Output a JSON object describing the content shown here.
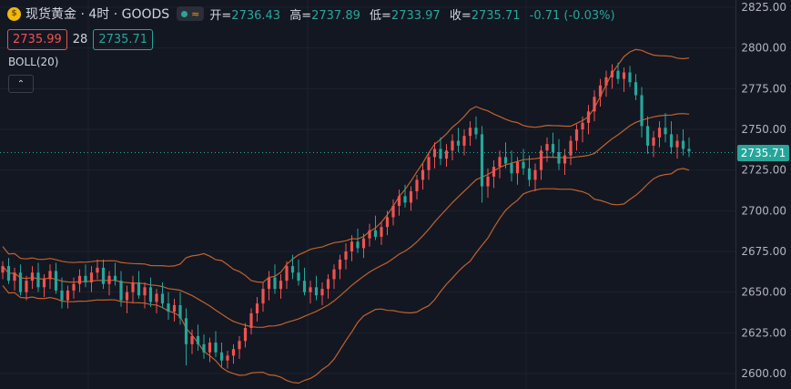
{
  "header": {
    "symbol_title": "现货黄金 · 4时 · GOODS",
    "logo_glyph": "$",
    "status_wave": "≈",
    "ohlc": [
      {
        "key": "开=",
        "value": "2736.43"
      },
      {
        "key": "高=",
        "value": "2737.89"
      },
      {
        "key": "低=",
        "value": "2733.97"
      },
      {
        "key": "收=",
        "value": "2735.71"
      }
    ],
    "change": "-0.71 (-0.03%)"
  },
  "trade": {
    "sell": "2735.99",
    "spread": "28",
    "buy": "2735.71"
  },
  "indicator": {
    "name": "BOLL(20)",
    "collapse_glyph": "⌃"
  },
  "price_axis": {
    "last_label": "2735.71"
  },
  "colors": {
    "up": "#ef5350",
    "down": "#26a69a",
    "band": "#c0622d",
    "background": "#131722",
    "grid": "#1e222d",
    "axis_text": "#b2b5be"
  },
  "chart_data": {
    "type": "candlestick",
    "y_axis": {
      "ticks": [
        2600,
        2625,
        2650,
        2675,
        2700,
        2725,
        2750,
        2775,
        2800,
        2825
      ],
      "ylim": [
        2596,
        2827
      ]
    },
    "last_price": 2735.71,
    "indicator": "BOLL(20)",
    "up_color_meaning": "close > open",
    "candles": [
      [
        2662,
        2669,
        2658,
        2666
      ],
      [
        2666,
        2671,
        2655,
        2657
      ],
      [
        2657,
        2665,
        2651,
        2662
      ],
      [
        2662,
        2667,
        2648,
        2650
      ],
      [
        2650,
        2660,
        2645,
        2657
      ],
      [
        2657,
        2666,
        2652,
        2662
      ],
      [
        2662,
        2668,
        2650,
        2653
      ],
      [
        2653,
        2661,
        2647,
        2658
      ],
      [
        2658,
        2667,
        2652,
        2663
      ],
      [
        2663,
        2668,
        2649,
        2651
      ],
      [
        2651,
        2659,
        2640,
        2645
      ],
      [
        2645,
        2654,
        2640,
        2651
      ],
      [
        2651,
        2659,
        2646,
        2655
      ],
      [
        2655,
        2664,
        2650,
        2660
      ],
      [
        2660,
        2667,
        2653,
        2656
      ],
      [
        2656,
        2666,
        2650,
        2662
      ],
      [
        2662,
        2670,
        2658,
        2665
      ],
      [
        2665,
        2670,
        2652,
        2655
      ],
      [
        2655,
        2663,
        2648,
        2660
      ],
      [
        2660,
        2668,
        2654,
        2657
      ],
      [
        2657,
        2663,
        2641,
        2645
      ],
      [
        2645,
        2654,
        2637,
        2650
      ],
      [
        2650,
        2660,
        2643,
        2656
      ],
      [
        2656,
        2663,
        2646,
        2648
      ],
      [
        2648,
        2656,
        2640,
        2653
      ],
      [
        2653,
        2659,
        2641,
        2644
      ],
      [
        2644,
        2652,
        2637,
        2649
      ],
      [
        2649,
        2656,
        2640,
        2643
      ],
      [
        2643,
        2650,
        2633,
        2638
      ],
      [
        2638,
        2646,
        2632,
        2642
      ],
      [
        2642,
        2650,
        2630,
        2634
      ],
      [
        2634,
        2640,
        2605,
        2618
      ],
      [
        2618,
        2627,
        2612,
        2623
      ],
      [
        2623,
        2630,
        2614,
        2618
      ],
      [
        2618,
        2624,
        2609,
        2613
      ],
      [
        2613,
        2622,
        2607,
        2619
      ],
      [
        2619,
        2626,
        2610,
        2613
      ],
      [
        2613,
        2619,
        2604,
        2608
      ],
      [
        2608,
        2614,
        2603,
        2611
      ],
      [
        2611,
        2618,
        2606,
        2615
      ],
      [
        2615,
        2623,
        2609,
        2620
      ],
      [
        2620,
        2631,
        2616,
        2628
      ],
      [
        2628,
        2640,
        2624,
        2637
      ],
      [
        2637,
        2647,
        2632,
        2643
      ],
      [
        2643,
        2656,
        2638,
        2652
      ],
      [
        2652,
        2663,
        2645,
        2659
      ],
      [
        2659,
        2667,
        2649,
        2652
      ],
      [
        2652,
        2661,
        2646,
        2657
      ],
      [
        2657,
        2669,
        2652,
        2666
      ],
      [
        2666,
        2673,
        2658,
        2662
      ],
      [
        2662,
        2670,
        2654,
        2657
      ],
      [
        2657,
        2665,
        2648,
        2650
      ],
      [
        2650,
        2657,
        2643,
        2653
      ],
      [
        2653,
        2660,
        2645,
        2648
      ],
      [
        2648,
        2656,
        2642,
        2652
      ],
      [
        2652,
        2661,
        2646,
        2658
      ],
      [
        2658,
        2667,
        2652,
        2664
      ],
      [
        2664,
        2673,
        2658,
        2670
      ],
      [
        2670,
        2680,
        2664,
        2675
      ],
      [
        2675,
        2685,
        2669,
        2681
      ],
      [
        2681,
        2689,
        2674,
        2677
      ],
      [
        2677,
        2686,
        2671,
        2683
      ],
      [
        2683,
        2692,
        2678,
        2688
      ],
      [
        2688,
        2697,
        2682,
        2684
      ],
      [
        2684,
        2693,
        2679,
        2690
      ],
      [
        2690,
        2700,
        2685,
        2696
      ],
      [
        2696,
        2707,
        2691,
        2703
      ],
      [
        2703,
        2713,
        2697,
        2709
      ],
      [
        2709,
        2716,
        2702,
        2705
      ],
      [
        2705,
        2715,
        2700,
        2712
      ],
      [
        2712,
        2722,
        2707,
        2719
      ],
      [
        2719,
        2729,
        2713,
        2725
      ],
      [
        2725,
        2736,
        2719,
        2733
      ],
      [
        2733,
        2742,
        2726,
        2738
      ],
      [
        2738,
        2745,
        2728,
        2732
      ],
      [
        2732,
        2741,
        2727,
        2737
      ],
      [
        2737,
        2747,
        2731,
        2743
      ],
      [
        2743,
        2751,
        2736,
        2740
      ],
      [
        2740,
        2750,
        2734,
        2746
      ],
      [
        2746,
        2755,
        2740,
        2751
      ],
      [
        2751,
        2758,
        2744,
        2747
      ],
      [
        2747,
        2752,
        2705,
        2715
      ],
      [
        2715,
        2726,
        2708,
        2721
      ],
      [
        2721,
        2731,
        2714,
        2727
      ],
      [
        2727,
        2737,
        2720,
        2733
      ],
      [
        2733,
        2742,
        2726,
        2729
      ],
      [
        2729,
        2737,
        2718,
        2723
      ],
      [
        2723,
        2733,
        2716,
        2730
      ],
      [
        2730,
        2738,
        2722,
        2726
      ],
      [
        2726,
        2734,
        2715,
        2719
      ],
      [
        2719,
        2729,
        2712,
        2725
      ],
      [
        2725,
        2740,
        2719,
        2737
      ],
      [
        2737,
        2745,
        2730,
        2741
      ],
      [
        2741,
        2748,
        2733,
        2736
      ],
      [
        2736,
        2744,
        2725,
        2729
      ],
      [
        2729,
        2738,
        2722,
        2734
      ],
      [
        2734,
        2746,
        2728,
        2743
      ],
      [
        2743,
        2753,
        2737,
        2750
      ],
      [
        2750,
        2758,
        2742,
        2754
      ],
      [
        2754,
        2765,
        2747,
        2761
      ],
      [
        2761,
        2774,
        2755,
        2770
      ],
      [
        2770,
        2781,
        2764,
        2777
      ],
      [
        2777,
        2786,
        2770,
        2782
      ],
      [
        2782,
        2790,
        2775,
        2786
      ],
      [
        2786,
        2791,
        2778,
        2781
      ],
      [
        2781,
        2788,
        2773,
        2785
      ],
      [
        2785,
        2789,
        2776,
        2779
      ],
      [
        2779,
        2784,
        2768,
        2771
      ],
      [
        2771,
        2776,
        2745,
        2752
      ],
      [
        2752,
        2758,
        2735,
        2740
      ],
      [
        2740,
        2749,
        2733,
        2745
      ],
      [
        2745,
        2755,
        2739,
        2751
      ],
      [
        2751,
        2760,
        2742,
        2747
      ],
      [
        2747,
        2755,
        2735,
        2739
      ],
      [
        2739,
        2747,
        2732,
        2743
      ],
      [
        2743,
        2750,
        2734,
        2738
      ],
      [
        2738,
        2745,
        2733,
        2736.43
      ]
    ]
  }
}
